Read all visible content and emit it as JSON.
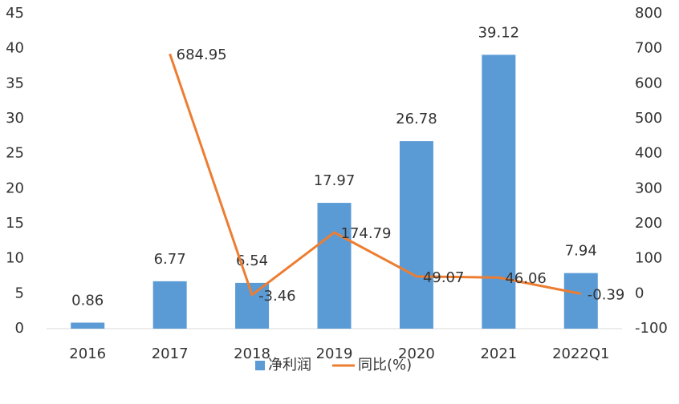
{
  "chart_data": {
    "type": "bar-line",
    "categories": [
      "2016",
      "2017",
      "2018",
      "2019",
      "2020",
      "2021",
      "2022Q1"
    ],
    "series": [
      {
        "name": "净利润",
        "type": "bar",
        "color": "#5b9bd5",
        "values": [
          0.86,
          6.77,
          6.54,
          17.97,
          26.78,
          39.12,
          7.94
        ]
      },
      {
        "name": "同比(%)",
        "type": "line",
        "axis": "y2",
        "color": "#ed7d31",
        "values": [
          null,
          684.95,
          -3.46,
          174.79,
          49.07,
          46.06,
          -0.39
        ]
      }
    ],
    "ylim": [
      0,
      45
    ],
    "yticks": [
      0,
      5,
      10,
      15,
      20,
      25,
      30,
      35,
      40,
      45
    ],
    "y2lim": [
      -100,
      800
    ],
    "y2ticks": [
      -100,
      0,
      100,
      200,
      300,
      400,
      500,
      600,
      700,
      800
    ],
    "legend": "bottom"
  }
}
